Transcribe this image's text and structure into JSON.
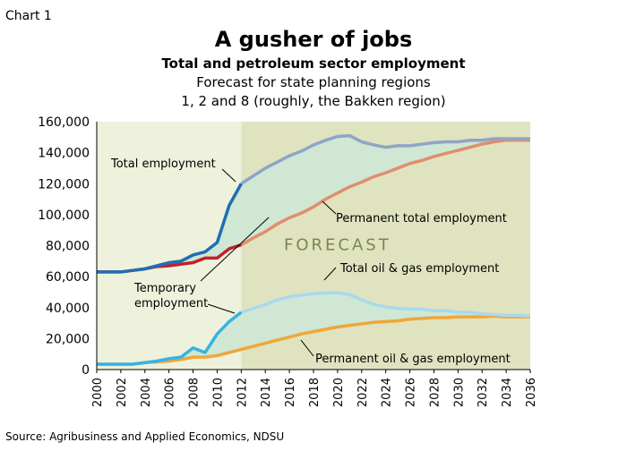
{
  "chart_label": "Chart 1",
  "source": "Source: Agribusiness and Applied Economics, NDSU",
  "chart_data": {
    "type": "line",
    "title": "A gusher of jobs",
    "subtitle_bold": "Total and petroleum sector employment",
    "subtitle_lines": [
      "Forecast for state planning regions",
      "1, 2 and 8 (roughly, the Bakken region)"
    ],
    "xlabel": "",
    "ylabel": "",
    "xlim": [
      2000,
      2036
    ],
    "ylim": [
      0,
      160000
    ],
    "y_ticks": [
      0,
      20000,
      40000,
      60000,
      80000,
      100000,
      120000,
      140000,
      160000
    ],
    "y_tick_labels": [
      "0",
      "20,000",
      "40,000",
      "60,000",
      "80,000",
      "100,000",
      "120,000",
      "140,000",
      "160,000"
    ],
    "x_ticks": [
      2000,
      2002,
      2004,
      2006,
      2008,
      2010,
      2012,
      2014,
      2016,
      2018,
      2020,
      2022,
      2024,
      2026,
      2028,
      2030,
      2032,
      2034,
      2036
    ],
    "forecast_start": 2012,
    "forecast_label": "FORECAST",
    "grid": false,
    "legend": "none (direct labels)",
    "colors": {
      "total_actual": "#1f6eb4",
      "total_forecast": "#8fa5c6",
      "permanent_actual": "#c2202c",
      "permanent_forecast": "#e08e6e",
      "oilgas_actual": "#35b3e6",
      "oilgas_forecast": "#a9d9ec",
      "perm_oilgas": "#f0a63a",
      "historical_bg": "#eef2dc",
      "forecast_bg": "#e0e3bf",
      "fill": "#cfe7d3",
      "forecast_text": "#7b8450"
    },
    "series": [
      {
        "key": "total",
        "name": "Total employment",
        "x": [
          2000,
          2001,
          2002,
          2003,
          2004,
          2005,
          2006,
          2007,
          2008,
          2009,
          2010,
          2011,
          2012,
          2013,
          2014,
          2015,
          2016,
          2017,
          2018,
          2019,
          2020,
          2021,
          2022,
          2023,
          2024,
          2025,
          2026,
          2027,
          2028,
          2029,
          2030,
          2031,
          2032,
          2033,
          2034,
          2035,
          2036
        ],
        "y": [
          63000,
          63000,
          63000,
          64000,
          65000,
          67000,
          69000,
          70000,
          74000,
          76000,
          82000,
          106000,
          120000,
          125000,
          130000,
          134000,
          138000,
          141000,
          145000,
          148000,
          150500,
          151000,
          147000,
          145000,
          143500,
          144500,
          144500,
          145500,
          146500,
          147000,
          147000,
          148000,
          148000,
          149000,
          149000,
          149000,
          149000
        ]
      },
      {
        "key": "permanent",
        "name": "Permanent total employment",
        "x": [
          2000,
          2001,
          2002,
          2003,
          2004,
          2005,
          2006,
          2007,
          2008,
          2009,
          2010,
          2011,
          2012,
          2013,
          2014,
          2015,
          2016,
          2017,
          2018,
          2019,
          2020,
          2021,
          2022,
          2023,
          2024,
          2025,
          2026,
          2027,
          2028,
          2029,
          2030,
          2031,
          2032,
          2033,
          2034,
          2035,
          2036
        ],
        "y": [
          63000,
          63000,
          63000,
          64000,
          65000,
          66500,
          67000,
          68000,
          69000,
          72000,
          72000,
          78000,
          80500,
          85000,
          89000,
          94000,
          98000,
          101000,
          105000,
          110000,
          114000,
          118000,
          121000,
          124500,
          127000,
          130000,
          133000,
          135000,
          137500,
          139500,
          141500,
          143500,
          145500,
          147000,
          148000,
          148000,
          148000
        ]
      },
      {
        "key": "oilgas",
        "name": "Total oil & gas employment",
        "x": [
          2000,
          2001,
          2002,
          2003,
          2004,
          2005,
          2006,
          2007,
          2008,
          2009,
          2010,
          2011,
          2012,
          2013,
          2014,
          2015,
          2016,
          2017,
          2018,
          2019,
          2020,
          2021,
          2022,
          2023,
          2024,
          2025,
          2026,
          2027,
          2028,
          2029,
          2030,
          2031,
          2032,
          2033,
          2034,
          2035,
          2036
        ],
        "y": [
          3500,
          3500,
          3500,
          3500,
          4500,
          5500,
          7000,
          8000,
          14000,
          11000,
          23000,
          31000,
          37000,
          39500,
          42000,
          45000,
          47000,
          48000,
          49000,
          49500,
          49500,
          48500,
          45000,
          42000,
          40500,
          39500,
          39000,
          39000,
          38000,
          38000,
          37000,
          37000,
          36000,
          35500,
          35000,
          35000,
          34500
        ]
      },
      {
        "key": "perm_oilgas",
        "name": "Permanent oil & gas employment",
        "x": [
          2000,
          2001,
          2002,
          2003,
          2004,
          2005,
          2006,
          2007,
          2008,
          2009,
          2010,
          2011,
          2012,
          2013,
          2014,
          2015,
          2016,
          2017,
          2018,
          2019,
          2020,
          2021,
          2022,
          2023,
          2024,
          2025,
          2026,
          2027,
          2028,
          2029,
          2030,
          2031,
          2032,
          2033,
          2034,
          2035,
          2036
        ],
        "y": [
          3500,
          3500,
          3500,
          3500,
          4500,
          5000,
          5500,
          6500,
          8000,
          8000,
          9000,
          11000,
          13000,
          15000,
          17000,
          19000,
          21000,
          23000,
          24500,
          26000,
          27500,
          28500,
          29500,
          30500,
          31000,
          31500,
          32500,
          33000,
          33500,
          33500,
          34000,
          34000,
          34000,
          34500,
          34000,
          34000,
          34000
        ]
      }
    ],
    "annotations": {
      "total": "Total employment",
      "permanent": "Permanent total employment",
      "oilgas": "Total oil & gas employment",
      "perm_oilgas": "Permanent oil & gas employment",
      "temporary": [
        "Temporary",
        "employment"
      ]
    }
  }
}
